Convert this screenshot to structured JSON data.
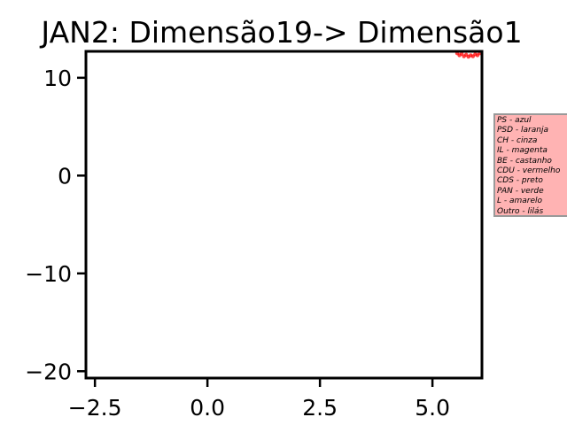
{
  "chart_data": {
    "type": "scatter",
    "title": "JAN2: Dimensão19-> Dimensão1",
    "xlabel": "",
    "ylabel": "",
    "xlim": [
      -2.7,
      6.1
    ],
    "ylim": [
      -20.7,
      12.7
    ],
    "xticks": [
      -2.5,
      0.0,
      2.5,
      5.0
    ],
    "xtick_labels": [
      "−2.5",
      "0.0",
      "2.5",
      "5.0"
    ],
    "yticks": [
      10,
      0,
      -10,
      -20
    ],
    "ytick_labels": [
      "10",
      "0",
      "−10",
      "−20"
    ],
    "grid": false,
    "legend_placement": "outside-right",
    "series": [
      {
        "color": "#ff0000",
        "points": [
          {
            "x": 5.55,
            "y": 12.5
          },
          {
            "x": 5.6,
            "y": 12.3
          },
          {
            "x": 5.65,
            "y": 12.45
          },
          {
            "x": 5.7,
            "y": 12.2
          },
          {
            "x": 5.75,
            "y": 12.35
          },
          {
            "x": 5.8,
            "y": 12.15
          },
          {
            "x": 5.85,
            "y": 12.3
          },
          {
            "x": 5.9,
            "y": 12.2
          },
          {
            "x": 5.95,
            "y": 12.4
          },
          {
            "x": 6.0,
            "y": 12.3
          },
          {
            "x": 6.05,
            "y": 12.5
          }
        ]
      }
    ],
    "legend_entries": [
      "PS - azul",
      "PSD - laranja",
      "CH - cinza",
      "IL - magenta",
      "BE - castanho",
      "CDU - vermelho",
      "CDS - preto",
      "PAN - verde",
      "L - amarelo",
      "Outro - lilás"
    ],
    "legend_background": "#ffb3b3",
    "legend_border": "#999999"
  }
}
